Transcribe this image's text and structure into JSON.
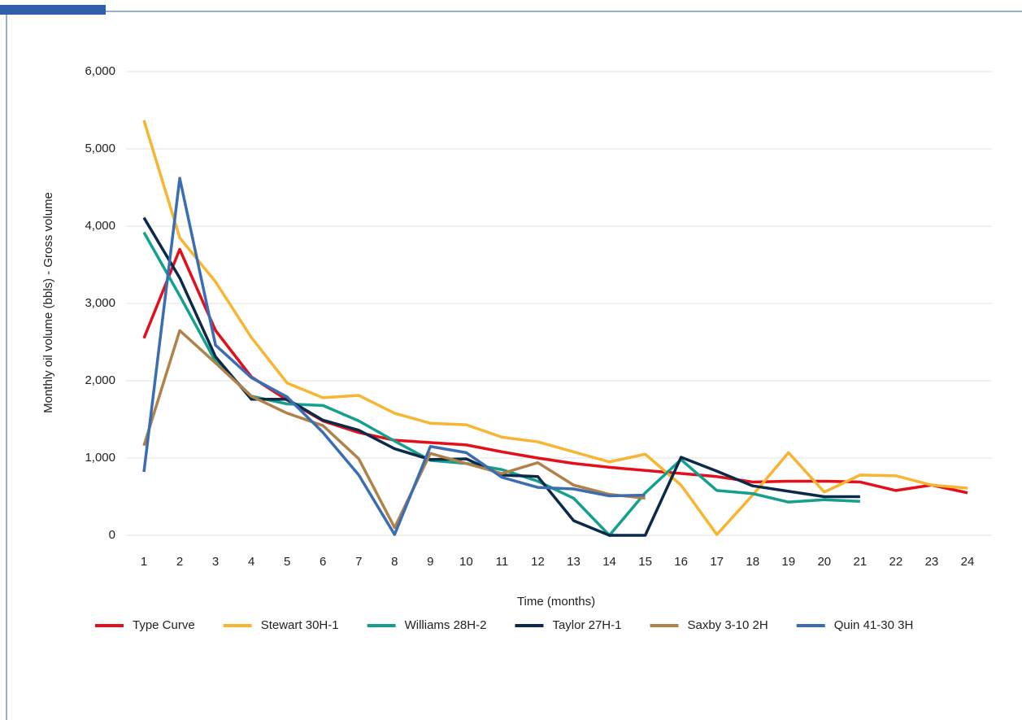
{
  "chart_data": {
    "type": "line",
    "ylabel": "Monthly oil volume (bbls) - Gross volume",
    "xlabel": "Time (months)",
    "x": [
      1,
      2,
      3,
      4,
      5,
      6,
      7,
      8,
      9,
      10,
      11,
      12,
      13,
      14,
      15,
      16,
      17,
      18,
      19,
      20,
      21,
      22,
      23,
      24
    ],
    "xlim": [
      0.5,
      24.5
    ],
    "xticks": [
      1,
      2,
      3,
      4,
      5,
      6,
      7,
      8,
      9,
      10,
      11,
      12,
      13,
      14,
      15,
      16,
      17,
      18,
      19,
      20,
      21,
      22,
      23,
      24
    ],
    "ylim": [
      0,
      6000
    ],
    "yticks": [
      0,
      {
        "value": 1000,
        "label": "1,000"
      },
      {
        "value": 2000,
        "label": "2,000"
      },
      {
        "value": 3000,
        "label": "3,000"
      },
      {
        "value": 4000,
        "label": "4,000"
      },
      {
        "value": 5000,
        "label": "5,000"
      },
      {
        "value": 6000,
        "label": "6,000"
      }
    ],
    "grid": true,
    "legend": "bottom",
    "series": [
      {
        "name": "Type Curve",
        "color": "#e3101c",
        "values": [
          2550,
          3700,
          2650,
          2050,
          1750,
          1480,
          1330,
          1230,
          1200,
          1170,
          1080,
          1000,
          930,
          880,
          840,
          800,
          760,
          690,
          700,
          700,
          690,
          580,
          650,
          550
        ]
      },
      {
        "name": "Stewart 30H-1",
        "color": "#f7b531",
        "values": [
          5370,
          3850,
          3280,
          2560,
          1970,
          1780,
          1810,
          1580,
          1450,
          1430,
          1270,
          1210,
          1080,
          950,
          1050,
          650,
          10,
          520,
          1070,
          560,
          780,
          770,
          650,
          610
        ]
      },
      {
        "name": "Williams 28H-2",
        "color": "#14a08f",
        "values": [
          3920,
          3100,
          2250,
          1800,
          1700,
          1680,
          1480,
          1220,
          970,
          930,
          850,
          700,
          480,
          0,
          550,
          980,
          580,
          540,
          430,
          460,
          440,
          null,
          null,
          null
        ]
      },
      {
        "name": "Taylor 27H-1",
        "color": "#0b2a4a",
        "values": [
          4110,
          3330,
          2310,
          1760,
          1760,
          1490,
          1360,
          1120,
          980,
          990,
          780,
          760,
          190,
          0,
          0,
          1010,
          830,
          640,
          570,
          500,
          500,
          null,
          null,
          null
        ]
      },
      {
        "name": "Saxby 3-10 2H",
        "color": "#b0824a",
        "values": [
          1160,
          2650,
          2230,
          1800,
          1580,
          1420,
          990,
          100,
          1060,
          930,
          800,
          940,
          650,
          530,
          480,
          null,
          null,
          null,
          null,
          null,
          null,
          null,
          null,
          null
        ]
      },
      {
        "name": "Quin 41-30 3H",
        "color": "#3b6db3",
        "values": [
          820,
          4620,
          2460,
          2040,
          1790,
          1330,
          780,
          10,
          1150,
          1070,
          750,
          620,
          600,
          510,
          520,
          null,
          null,
          null,
          null,
          null,
          null,
          null,
          null,
          null
        ]
      }
    ]
  }
}
